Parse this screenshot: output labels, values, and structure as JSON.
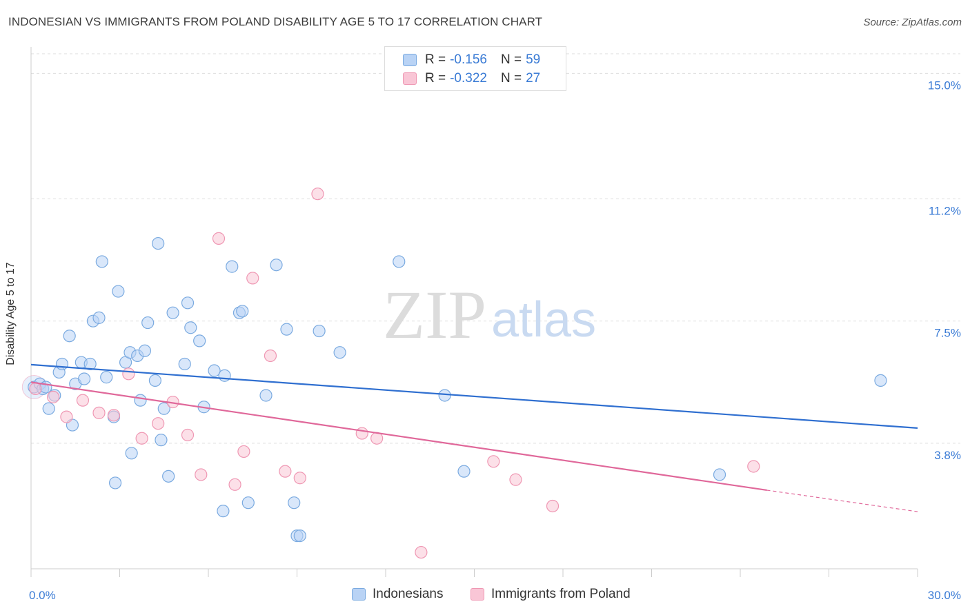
{
  "title": "INDONESIAN VS IMMIGRANTS FROM POLAND DISABILITY AGE 5 TO 17 CORRELATION CHART",
  "source": "Source: ZipAtlas.com",
  "watermark": {
    "zip": "ZIP",
    "atlas": "atlas"
  },
  "legend_top": [
    {
      "r_label": "R =",
      "r_value": "-0.156",
      "n_label": "N =",
      "n_value": "59"
    },
    {
      "r_label": "R =",
      "r_value": "-0.322",
      "n_label": "N =",
      "n_value": "27"
    }
  ],
  "legend_bottom": [
    "Indonesians",
    "Immigrants from Poland"
  ],
  "colors": {
    "blue_fill": "#b9d3f5",
    "blue_stroke": "#7aaae0",
    "blue_line": "#2f6fd0",
    "pink_fill": "#f9c6d6",
    "pink_stroke": "#ef97b3",
    "pink_line": "#e0689a",
    "tick_label": "#3a7bd5",
    "grid": "#dddddd"
  },
  "chart_data": {
    "type": "scatter",
    "title": "INDONESIAN VS IMMIGRANTS FROM POLAND DISABILITY AGE 5 TO 17 CORRELATION CHART",
    "xlabel": "",
    "ylabel": "Disability Age 5 to 17",
    "xlim": [
      0,
      30
    ],
    "ylim": [
      0,
      15.8
    ],
    "x_tick_labels": [
      {
        "value": 0,
        "label": "0.0%"
      },
      {
        "value": 30,
        "label": "30.0%"
      }
    ],
    "y_ticks": [
      {
        "value": 3.8,
        "label": "3.8%"
      },
      {
        "value": 7.5,
        "label": "7.5%"
      },
      {
        "value": 11.2,
        "label": "11.2%"
      },
      {
        "value": 15.0,
        "label": "15.0%"
      }
    ],
    "grid": "horizontal dashed",
    "legend_placement": "top-center and bottom",
    "series": [
      {
        "name": "Indonesians",
        "color": "#b9d3f5",
        "points": [
          [
            0.1,
            5.5
          ],
          [
            0.3,
            5.6
          ],
          [
            0.4,
            5.45
          ],
          [
            0.5,
            5.5
          ],
          [
            0.6,
            4.85
          ],
          [
            0.8,
            5.25
          ],
          [
            0.95,
            5.95
          ],
          [
            1.05,
            6.2
          ],
          [
            1.3,
            7.05
          ],
          [
            1.4,
            4.35
          ],
          [
            1.5,
            5.6
          ],
          [
            1.8,
            5.75
          ],
          [
            1.7,
            6.25
          ],
          [
            2.0,
            6.2
          ],
          [
            2.1,
            7.5
          ],
          [
            2.3,
            7.6
          ],
          [
            2.4,
            9.3
          ],
          [
            2.55,
            5.8
          ],
          [
            2.8,
            4.6
          ],
          [
            2.85,
            2.6
          ],
          [
            2.95,
            8.4
          ],
          [
            3.2,
            6.25
          ],
          [
            3.35,
            6.55
          ],
          [
            3.4,
            3.5
          ],
          [
            3.6,
            6.45
          ],
          [
            3.7,
            5.1
          ],
          [
            3.85,
            6.6
          ],
          [
            3.95,
            7.45
          ],
          [
            4.2,
            5.7
          ],
          [
            4.3,
            9.85
          ],
          [
            4.4,
            3.9
          ],
          [
            4.5,
            4.85
          ],
          [
            4.65,
            2.8
          ],
          [
            4.8,
            7.75
          ],
          [
            5.2,
            6.2
          ],
          [
            5.3,
            8.05
          ],
          [
            5.4,
            7.3
          ],
          [
            5.7,
            6.9
          ],
          [
            5.85,
            4.9
          ],
          [
            6.2,
            6.0
          ],
          [
            6.5,
            1.75
          ],
          [
            6.55,
            5.85
          ],
          [
            6.8,
            9.15
          ],
          [
            7.05,
            7.75
          ],
          [
            7.15,
            7.8
          ],
          [
            7.35,
            2.0
          ],
          [
            7.95,
            5.25
          ],
          [
            8.3,
            9.2
          ],
          [
            8.65,
            7.25
          ],
          [
            8.9,
            2.0
          ],
          [
            9.0,
            1.0
          ],
          [
            9.1,
            1.0
          ],
          [
            9.75,
            7.2
          ],
          [
            10.45,
            6.55
          ],
          [
            12.45,
            9.3
          ],
          [
            14.0,
            5.25
          ],
          [
            14.65,
            2.95
          ],
          [
            23.3,
            2.85
          ],
          [
            28.75,
            5.7
          ]
        ],
        "trend": {
          "x": [
            0,
            30
          ],
          "y": [
            6.18,
            4.26
          ],
          "color": "#2f6fd0"
        }
      },
      {
        "name": "Immigrants from Poland",
        "color": "#f9c6d6",
        "points": [
          [
            0.15,
            5.45
          ],
          [
            0.75,
            5.2
          ],
          [
            1.2,
            4.6
          ],
          [
            1.75,
            5.1
          ],
          [
            2.3,
            4.72
          ],
          [
            2.8,
            4.65
          ],
          [
            3.3,
            5.9
          ],
          [
            3.75,
            3.95
          ],
          [
            4.3,
            4.4
          ],
          [
            4.8,
            5.05
          ],
          [
            5.3,
            4.05
          ],
          [
            5.75,
            2.85
          ],
          [
            6.35,
            10.0
          ],
          [
            6.9,
            2.55
          ],
          [
            7.2,
            3.55
          ],
          [
            7.5,
            8.8
          ],
          [
            8.1,
            6.45
          ],
          [
            8.6,
            2.95
          ],
          [
            9.1,
            2.75
          ],
          [
            9.7,
            11.35
          ],
          [
            11.2,
            4.1
          ],
          [
            11.7,
            3.95
          ],
          [
            13.2,
            0.5
          ],
          [
            15.65,
            3.25
          ],
          [
            16.4,
            2.7
          ],
          [
            17.65,
            1.9
          ],
          [
            24.45,
            3.1
          ]
        ],
        "trend": {
          "x": [
            0,
            24.9
          ],
          "y": [
            5.65,
            2.38
          ],
          "dashed_to": {
            "x": 30,
            "y": 1.73
          },
          "color": "#e0689a"
        }
      }
    ]
  }
}
